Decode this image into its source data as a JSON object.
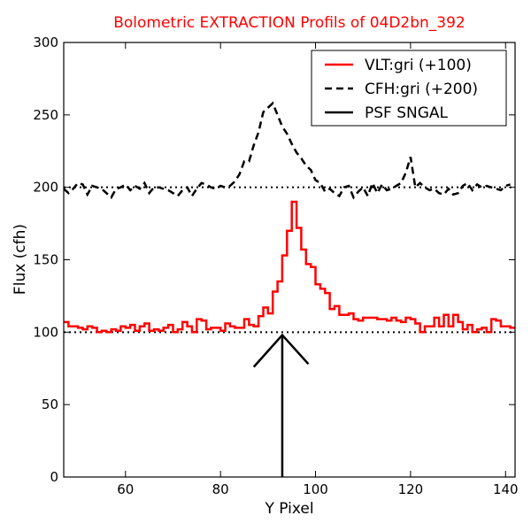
{
  "chart_data": {
    "type": "line",
    "title": "Bolometric EXTRACTION Profils of 04D2bn_392",
    "title_color": "#ff0000",
    "xlabel": "Y Pixel",
    "ylabel": "Flux (cfh)",
    "xlim": [
      47,
      142
    ],
    "ylim": [
      0,
      300
    ],
    "xticks": [
      60,
      80,
      100,
      120,
      140
    ],
    "yticks": [
      0,
      50,
      100,
      150,
      200,
      250,
      300
    ],
    "legend_position": "top-right",
    "series": [
      {
        "name": "VLT:gri (+100)",
        "style": "steps-red",
        "color": "#ff0000",
        "x": [
          47,
          48,
          49,
          50,
          51,
          52,
          53,
          54,
          55,
          56,
          57,
          58,
          59,
          60,
          61,
          62,
          63,
          64,
          65,
          66,
          67,
          68,
          69,
          70,
          71,
          72,
          73,
          74,
          75,
          76,
          77,
          78,
          79,
          80,
          81,
          82,
          83,
          84,
          85,
          86,
          87,
          88,
          89,
          90,
          91,
          92,
          93,
          94,
          95,
          96,
          97,
          98,
          99,
          100,
          101,
          102,
          103,
          104,
          105,
          106,
          107,
          108,
          109,
          110,
          111,
          112,
          113,
          114,
          115,
          116,
          117,
          118,
          119,
          120,
          121,
          122,
          123,
          124,
          125,
          126,
          127,
          128,
          129,
          130,
          131,
          132,
          133,
          134,
          135,
          136,
          137,
          138,
          139,
          140,
          141
        ],
        "y": [
          107,
          104,
          104,
          103,
          102,
          104,
          103,
          100,
          101,
          100,
          102,
          101,
          104,
          103,
          105,
          101,
          104,
          106,
          101,
          102,
          101,
          103,
          105,
          100,
          102,
          107,
          104,
          100,
          109,
          108,
          102,
          103,
          103,
          101,
          106,
          104,
          103,
          103,
          109,
          105,
          104,
          111,
          117,
          113,
          128,
          135,
          153,
          170,
          190,
          172,
          157,
          147,
          145,
          133,
          130,
          127,
          116,
          118,
          112,
          112,
          113,
          109,
          108,
          110,
          110,
          110,
          109,
          109,
          108,
          110,
          108,
          107,
          110,
          109,
          106,
          100,
          104,
          104,
          110,
          104,
          112,
          104,
          112,
          107,
          102,
          105,
          100,
          102,
          103,
          100,
          109,
          108,
          104,
          104,
          103
        ],
        "step_start": 47
      },
      {
        "name": "CFH:gri (+200)",
        "style": "dashed-black",
        "color": "#000000",
        "x": [
          47,
          48,
          49,
          50,
          51,
          52,
          53,
          54,
          55,
          56,
          57,
          58,
          59,
          60,
          61,
          62,
          63,
          64,
          65,
          66,
          67,
          68,
          69,
          70,
          71,
          72,
          73,
          74,
          75,
          76,
          77,
          78,
          79,
          80,
          81,
          82,
          83,
          84,
          85,
          86,
          87,
          88,
          89,
          90,
          91,
          92,
          93,
          94,
          95,
          96,
          97,
          98,
          99,
          100,
          101,
          102,
          103,
          104,
          105,
          106,
          107,
          108,
          109,
          110,
          111,
          112,
          113,
          114,
          115,
          116,
          117,
          118,
          119,
          120,
          121,
          122,
          123,
          124,
          125,
          126,
          127,
          128,
          129,
          130,
          131,
          132,
          133,
          134,
          135,
          136,
          137,
          138,
          139,
          140,
          141
        ],
        "y": [
          199,
          196,
          199,
          203,
          202,
          195,
          201,
          200,
          199,
          196,
          193,
          199,
          200,
          202,
          198,
          201,
          199,
          203,
          196,
          200,
          200,
          199,
          198,
          196,
          194,
          198,
          200,
          194,
          199,
          203,
          202,
          200,
          199,
          201,
          200,
          201,
          204,
          209,
          218,
          218,
          229,
          238,
          252,
          255,
          258,
          250,
          242,
          237,
          230,
          224,
          220,
          215,
          212,
          205,
          203,
          197,
          199,
          196,
          194,
          200,
          201,
          193,
          197,
          200,
          194,
          203,
          196,
          202,
          198,
          199,
          201,
          203,
          210,
          221,
          200,
          203,
          200,
          198,
          199,
          196,
          195,
          199,
          195,
          196,
          201,
          203,
          198,
          202,
          200,
          201,
          200,
          199,
          198,
          201,
          202
        ],
        "smooth": true
      },
      {
        "name": "PSF SNGAL",
        "style": "solid-black",
        "color": "#000000",
        "note_type": "arrow",
        "arrow_x": 93,
        "arrow_tip_y": 98,
        "arrow_base_y": 0,
        "arrow_head_left": [
          87,
          76
        ],
        "arrow_head_right": [
          98.5,
          78
        ]
      }
    ],
    "reference_lines": [
      {
        "y": 100,
        "style": "dotted",
        "color": "#000000"
      },
      {
        "y": 200,
        "style": "dotted",
        "color": "#000000"
      }
    ]
  }
}
